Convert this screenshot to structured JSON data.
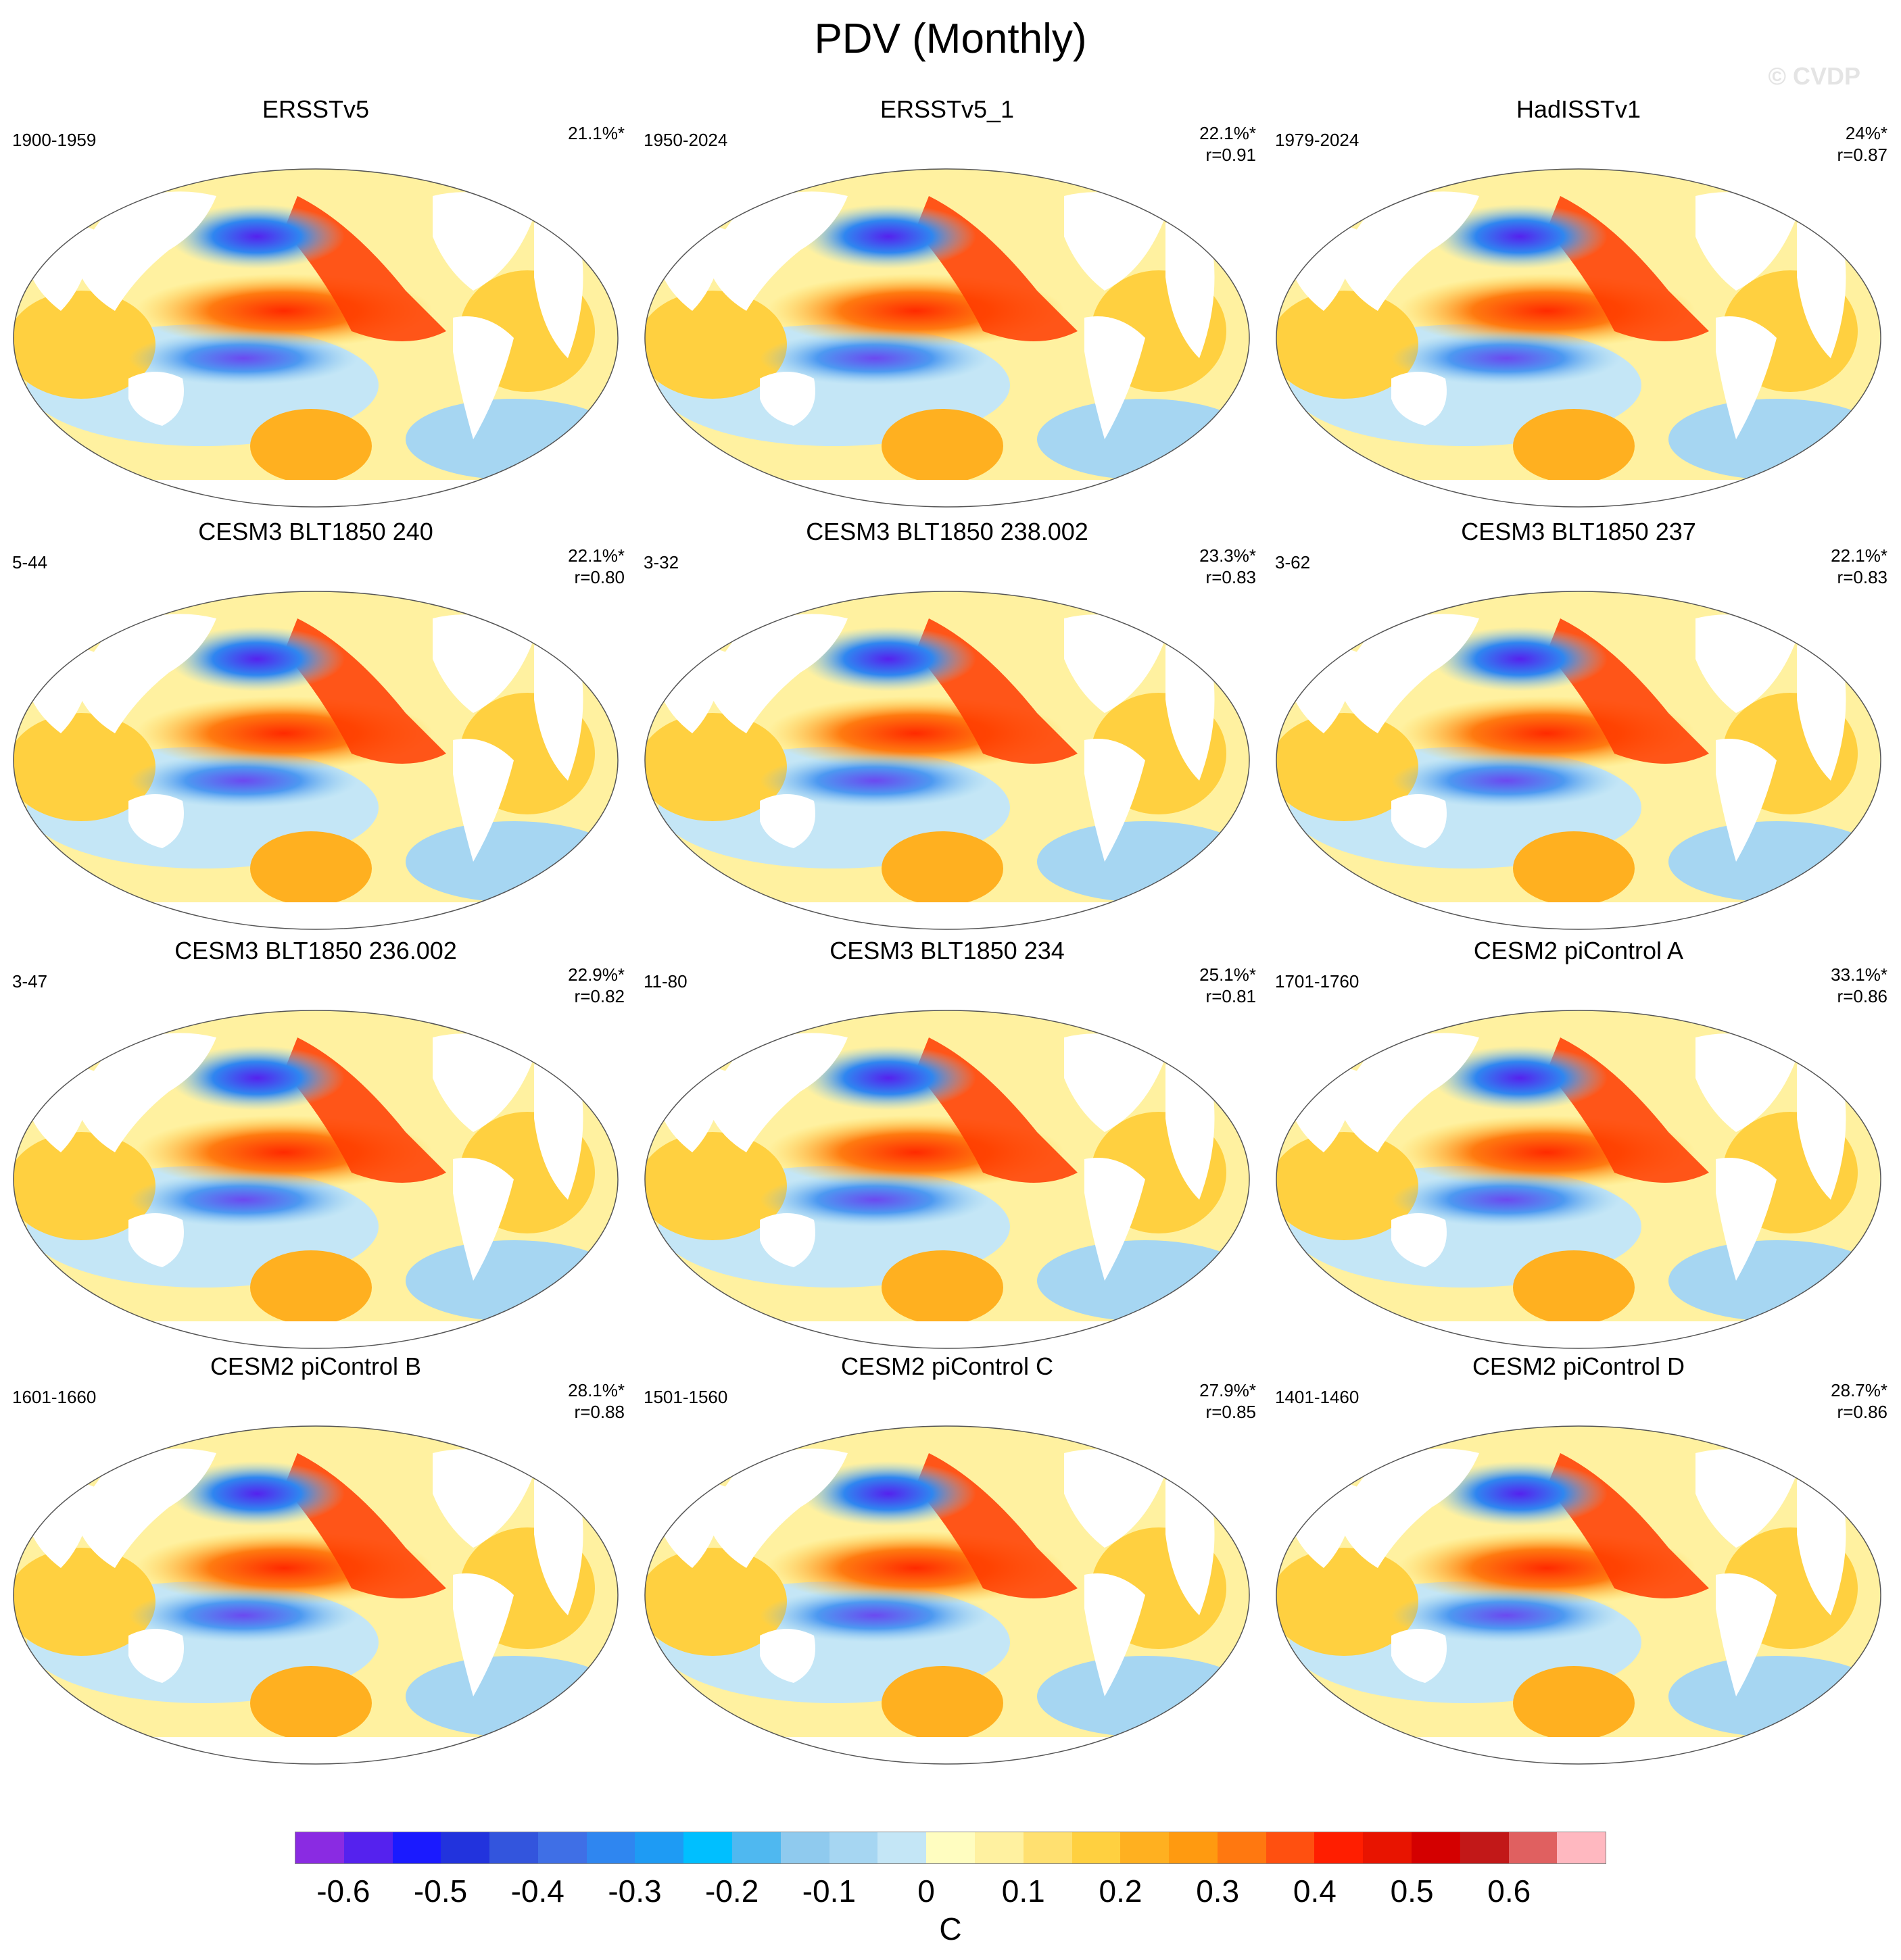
{
  "title": "PDV (Monthly)",
  "watermark": "© CVDP",
  "panels": [
    {
      "title": "ERSSTv5",
      "period": "1900-1959",
      "pct": "21.1%*",
      "r": ""
    },
    {
      "title": "ERSSTv5_1",
      "period": "1950-2024",
      "pct": "22.1%*",
      "r": "r=0.91"
    },
    {
      "title": "HadISSTv1",
      "period": "1979-2024",
      "pct": "24%*",
      "r": "r=0.87"
    },
    {
      "title": "CESM3 BLT1850 240",
      "period": "5-44",
      "pct": "22.1%*",
      "r": "r=0.80"
    },
    {
      "title": "CESM3 BLT1850 238.002",
      "period": "3-32",
      "pct": "23.3%*",
      "r": "r=0.83"
    },
    {
      "title": "CESM3 BLT1850 237",
      "period": "3-62",
      "pct": "22.1%*",
      "r": "r=0.83"
    },
    {
      "title": "CESM3 BLT1850 236.002",
      "period": "3-47",
      "pct": "22.9%*",
      "r": "r=0.82"
    },
    {
      "title": "CESM3 BLT1850 234",
      "period": "11-80",
      "pct": "25.1%*",
      "r": "r=0.81"
    },
    {
      "title": "CESM2 piControl A",
      "period": "1701-1760",
      "pct": "33.1%*",
      "r": "r=0.86"
    },
    {
      "title": "CESM2 piControl B",
      "period": "1601-1660",
      "pct": "28.1%*",
      "r": "r=0.88"
    },
    {
      "title": "CESM2 piControl C",
      "period": "1501-1560",
      "pct": "27.9%*",
      "r": "r=0.85"
    },
    {
      "title": "CESM2 piControl D",
      "period": "1401-1460",
      "pct": "28.7%*",
      "r": "r=0.86"
    }
  ],
  "colorbar": {
    "colors": [
      "#8a2be2",
      "#5522ee",
      "#1a1aff",
      "#2233dd",
      "#3355dd",
      "#3f6fe6",
      "#2f86f0",
      "#1e9bf4",
      "#00bfff",
      "#4fb8f0",
      "#8fcaee",
      "#a6d6f2",
      "#c4e6f6",
      "#fffdc0",
      "#fff1a0",
      "#ffe070",
      "#ffd040",
      "#ffb020",
      "#ff9a10",
      "#ff7810",
      "#ff5010",
      "#ff1e00",
      "#e81400",
      "#d40000",
      "#c21818",
      "#e06060",
      "#ffb8c0"
    ],
    "tick_labels": [
      "-0.6",
      "-0.5",
      "-0.4",
      "-0.3",
      "-0.2",
      "-0.1",
      "0",
      "0.1",
      "0.2",
      "0.3",
      "0.4",
      "0.5",
      "0.6"
    ],
    "unit": "C"
  }
}
